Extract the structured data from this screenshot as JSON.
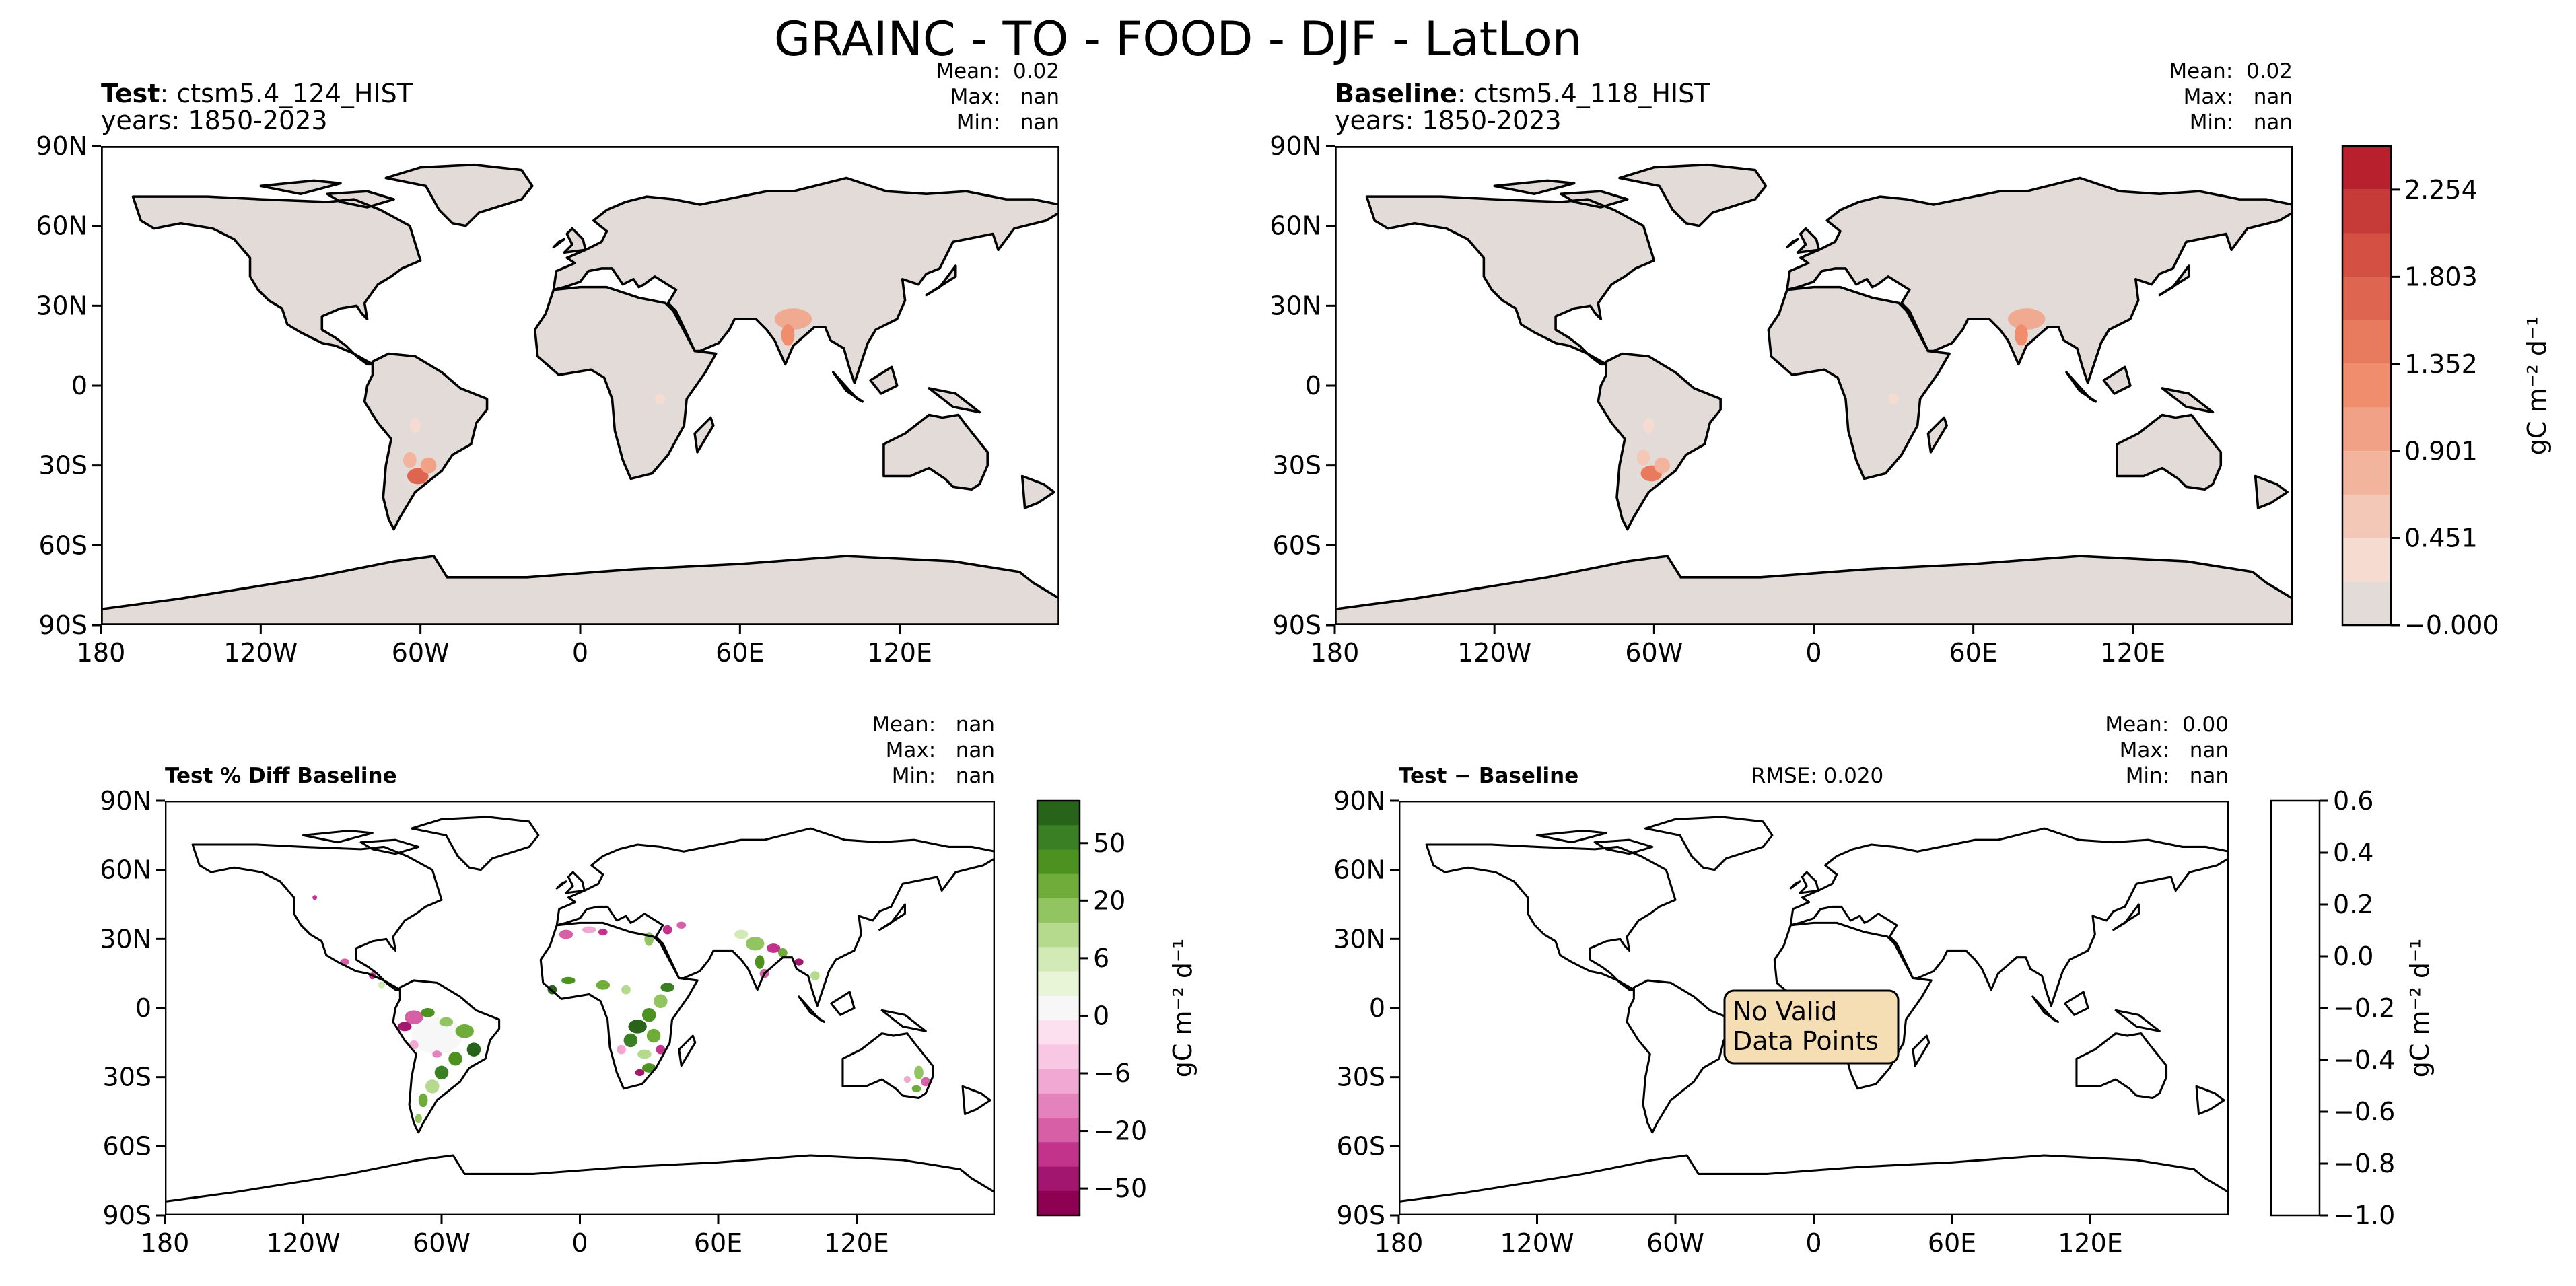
{
  "figure": {
    "title": "GRAINC - TO - FOOD - DJF - LatLon"
  },
  "chart_data": [
    {
      "type": "heatmap",
      "projection": "PlateCarree",
      "label_bold": "Test",
      "label_rest": ": ctsm5.4_124_HIST",
      "years": "years: 1850-2023",
      "stats": {
        "mean": "Mean:  0.02",
        "max": "Max:   nan",
        "min": "Min:   nan"
      },
      "xticks": [
        "180",
        "120W",
        "60W",
        "0",
        "60E",
        "120E"
      ],
      "yticks": [
        "90N",
        "60N",
        "30N",
        "0",
        "30S",
        "60S",
        "90S"
      ],
      "xlim": [
        -180,
        180
      ],
      "ylim": [
        -90,
        90
      ],
      "field": "mostly ~0 over land; higher values over northern India and the La Plata basin (Argentina/Uruguay)"
    },
    {
      "type": "heatmap",
      "projection": "PlateCarree",
      "label_bold": "Baseline",
      "label_rest": ": ctsm5.4_118_HIST",
      "years": "years: 1850-2023",
      "stats": {
        "mean": "Mean:  0.02",
        "max": "Max:   nan",
        "min": "Min:   nan"
      },
      "xticks": [
        "180",
        "120W",
        "60W",
        "0",
        "60E",
        "120E"
      ],
      "yticks": [
        "90N",
        "60N",
        "30N",
        "0",
        "30S",
        "60S",
        "90S"
      ],
      "colorbar": {
        "ticks": [
          "2.254",
          "1.803",
          "1.352",
          "0.901",
          "0.451",
          "−0.000"
        ],
        "tick_values": [
          2.254,
          1.803,
          1.352,
          0.901,
          0.451,
          0.0
        ],
        "range": [
          0,
          2.48
        ],
        "levels": 11,
        "colors": [
          "#e2dbd7",
          "#f5dbd0",
          "#f4c8b7",
          "#f3b49e",
          "#f1a185",
          "#ef8d6c",
          "#e87a5d",
          "#de654f",
          "#d35043",
          "#c63b37",
          "#b7202c"
        ],
        "label": "gC m⁻² d⁻¹"
      }
    },
    {
      "type": "heatmap",
      "projection": "PlateCarree",
      "label_bold": "Test % Diff Baseline",
      "stats": {
        "mean": "Mean:   nan",
        "max": "Max:   nan",
        "min": "Min:   nan"
      },
      "xticks": [
        "180",
        "120W",
        "60W",
        "0",
        "60E",
        "120E"
      ],
      "yticks": [
        "90N",
        "60N",
        "30N",
        "0",
        "30S",
        "60S",
        "90S"
      ],
      "field": "scattered positive (green) and negative (magenta) percent differences over South America, Africa, South Asia and eastern Australia",
      "colorbar": {
        "ticks": [
          "50",
          "20",
          "6",
          "0",
          "−6",
          "−20",
          "−50"
        ],
        "colors": [
          "#276419",
          "#3b7f25",
          "#4d9221",
          "#6fac3a",
          "#93c462",
          "#b5da8e",
          "#d2ebb6",
          "#e8f5d6",
          "#f7f7f7",
          "#fde0ef",
          "#f7c7e3",
          "#f1a8d3",
          "#e482bd",
          "#d65fa5",
          "#c2348c",
          "#a3166f",
          "#8e0152"
        ],
        "label": "gC m⁻² d⁻¹"
      }
    },
    {
      "type": "heatmap",
      "projection": "PlateCarree",
      "label_bold": "Test − Baseline",
      "rmse": "RMSE: 0.020",
      "stats": {
        "mean": "Mean:  0.00",
        "max": "Max:   nan",
        "min": "Min:   nan"
      },
      "xticks": [
        "180",
        "120W",
        "60W",
        "0",
        "60E",
        "120E"
      ],
      "yticks": [
        "90N",
        "60N",
        "30N",
        "0",
        "30S",
        "60S",
        "90S"
      ],
      "annotation": [
        "No Valid",
        "Data Points"
      ],
      "colorbar": {
        "ticks": [
          "0.6",
          "0.4",
          "0.2",
          "0.0",
          "−0.2",
          "−0.4",
          "−0.6",
          "−0.8",
          "−1.0"
        ],
        "tick_values": [
          0.6,
          0.4,
          0.2,
          0.0,
          -0.2,
          -0.4,
          -0.6,
          -0.8,
          -1.0
        ],
        "range": [
          -1.0,
          0.6
        ],
        "label": "gC m⁻² d⁻¹"
      }
    }
  ]
}
